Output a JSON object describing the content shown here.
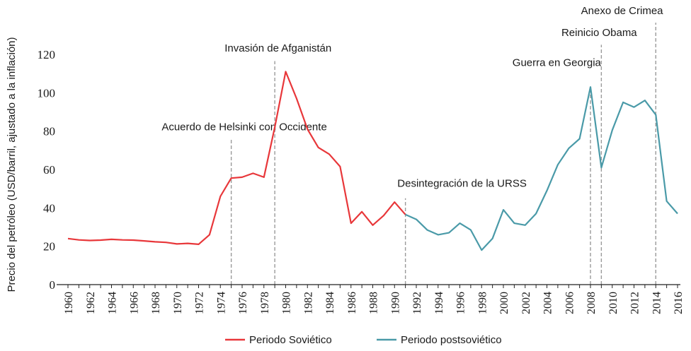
{
  "chart_data": {
    "type": "line",
    "title": "",
    "xlabel": "",
    "ylabel": "Precio del petróleo (USD/barril, ajustado a la inflación)",
    "xlim": [
      1960,
      2016
    ],
    "ylim": [
      0,
      120
    ],
    "yticks": [
      0,
      20,
      40,
      60,
      80,
      100,
      120
    ],
    "xticks": [
      1960,
      1962,
      1964,
      1966,
      1968,
      1970,
      1972,
      1974,
      1976,
      1978,
      1980,
      1982,
      1984,
      1986,
      1988,
      1990,
      1992,
      1994,
      1996,
      1998,
      2000,
      2002,
      2004,
      2006,
      2008,
      2010,
      2012,
      2014,
      2016
    ],
    "grid": false,
    "legend_position": "bottom",
    "series": [
      {
        "name": "Periodo Soviético",
        "color": "#e8373a",
        "x": [
          1960,
          1961,
          1962,
          1963,
          1964,
          1965,
          1966,
          1967,
          1968,
          1969,
          1970,
          1971,
          1972,
          1973,
          1974,
          1975,
          1976,
          1977,
          1978,
          1979,
          1980,
          1981,
          1982,
          1983,
          1984,
          1985,
          1986,
          1987,
          1988,
          1989,
          1990,
          1991
        ],
        "y": [
          24,
          23.3,
          23,
          23.2,
          23.6,
          23.3,
          23.2,
          22.8,
          22.3,
          22,
          21.2,
          21.5,
          21,
          26,
          46,
          55.5,
          56,
          58,
          56,
          82,
          111,
          97,
          81,
          71.5,
          68,
          61.5,
          32,
          38,
          31,
          36,
          43,
          36.5
        ]
      },
      {
        "name": "Periodo postsoviético",
        "color": "#4a9aa8",
        "x": [
          1991,
          1992,
          1993,
          1994,
          1995,
          1996,
          1997,
          1998,
          1999,
          2000,
          2001,
          2002,
          2003,
          2004,
          2005,
          2006,
          2007,
          2008,
          2009,
          2010,
          2011,
          2012,
          2013,
          2014,
          2015,
          2016
        ],
        "y": [
          36.5,
          34,
          28.5,
          26,
          27,
          32,
          28.5,
          18,
          24,
          39,
          32,
          31,
          37,
          49,
          62.5,
          71,
          76,
          103,
          61,
          80.5,
          95,
          92.5,
          96,
          88.5,
          43.5,
          37
        ]
      }
    ],
    "annotations": [
      {
        "year": 1975,
        "text": "Acuerdo de Helsinki con Occidente",
        "line_top_value": 76.5,
        "label_value": 80.5,
        "anchor": "middle",
        "anchor_year": 1976.2
      },
      {
        "year": 1979,
        "text": "Invasión de Afganistán",
        "line_top_value": 116.5,
        "label_value": 121.5,
        "anchor": "middle",
        "anchor_year": 1979.3
      },
      {
        "year": 1991,
        "text": "Desintegración de la URSS",
        "line_top_value": 45,
        "label_value": 51,
        "anchor": "middle",
        "anchor_year": 1996.2
      },
      {
        "year": 2008,
        "text": "Guerra en Georgia",
        "line_top_value": 102,
        "label_value": 114,
        "anchor": "middle",
        "anchor_year": 2004.9
      },
      {
        "year": 2009,
        "text": "Reinicio Obama",
        "line_top_value": 125,
        "label_value": 129.5,
        "anchor": "middle",
        "anchor_year": 2008.8
      },
      {
        "year": 2014,
        "text": "Anexo de Crimea",
        "line_top_value": 136.5,
        "label_value": 141,
        "anchor": "middle",
        "anchor_year": 2010.9
      }
    ]
  }
}
